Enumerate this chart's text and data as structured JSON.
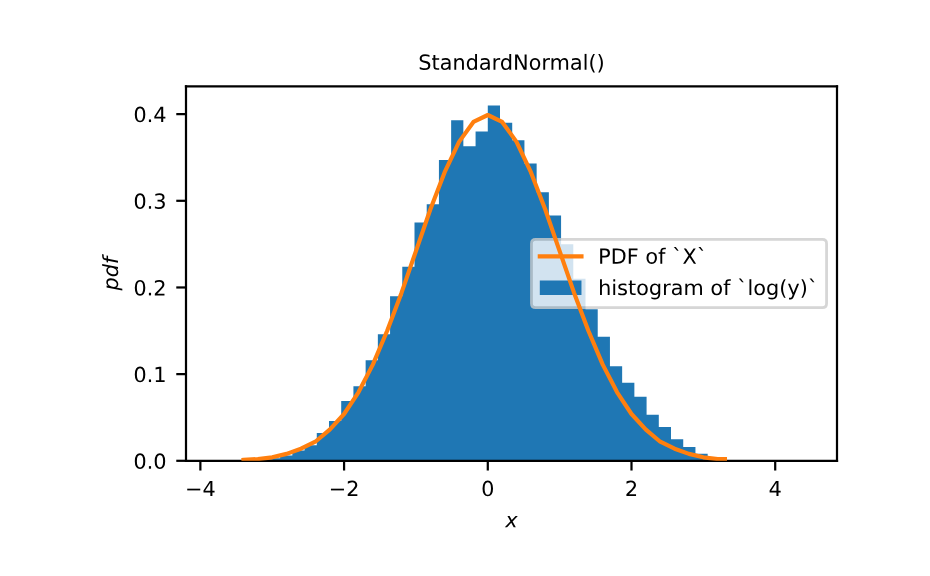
{
  "chart_data": {
    "type": "histogram",
    "title": "StandardNormal()",
    "xlabel": "x",
    "ylabel": "pdf",
    "xlim": [
      -4.2,
      4.86
    ],
    "ylim": [
      0,
      0.432
    ],
    "xticks": [
      {
        "value": -4,
        "label": "−4"
      },
      {
        "value": -2,
        "label": "−2"
      },
      0,
      2,
      4
    ],
    "yticks": [
      {
        "value": 0,
        "label": "0.0"
      },
      0.1,
      0.2,
      0.3,
      0.4
    ],
    "grid": false,
    "legend": "right",
    "series": [
      {
        "type": "line",
        "name": "PDF of `X`",
        "color": "#ff7f0e",
        "x": [
          -3.4,
          -3.2,
          -3.0,
          -2.8,
          -2.6,
          -2.4,
          -2.2,
          -2.0,
          -1.8,
          -1.6,
          -1.4,
          -1.2,
          -1.0,
          -0.8,
          -0.6,
          -0.4,
          -0.2,
          0,
          0.2,
          0.4,
          0.6,
          0.8,
          1.0,
          1.2,
          1.4,
          1.6,
          1.8,
          2.0,
          2.2,
          2.4,
          2.6,
          2.8,
          3.0,
          3.2,
          3.3
        ],
        "values": [
          0.001,
          0.002,
          0.004,
          0.008,
          0.014,
          0.022,
          0.036,
          0.054,
          0.079,
          0.111,
          0.15,
          0.194,
          0.242,
          0.29,
          0.333,
          0.368,
          0.391,
          0.399,
          0.391,
          0.368,
          0.333,
          0.29,
          0.242,
          0.194,
          0.15,
          0.111,
          0.079,
          0.054,
          0.036,
          0.022,
          0.014,
          0.008,
          0.004,
          0.002,
          0.002
        ]
      },
      {
        "name": "histogram of `log(y)`",
        "color": "#1f77b4",
        "bins": [
          -3.06,
          -2.89,
          -2.72,
          -2.55,
          -2.38,
          -2.21,
          -2.04,
          -1.87,
          -1.7,
          -1.53,
          -1.36,
          -1.19,
          -1.02,
          -0.85,
          -0.68,
          -0.51,
          -0.34,
          -0.17,
          0,
          0.17,
          0.34,
          0.51,
          0.68,
          0.85,
          1.02,
          1.19,
          1.36,
          1.53,
          1.7,
          1.87,
          2.04,
          2.21,
          2.38,
          2.55,
          2.72,
          2.89,
          3.06
        ],
        "values": [
          0.003,
          0.006,
          0.012,
          0.018,
          0.032,
          0.046,
          0.069,
          0.086,
          0.116,
          0.146,
          0.19,
          0.224,
          0.275,
          0.296,
          0.347,
          0.393,
          0.363,
          0.38,
          0.41,
          0.39,
          0.37,
          0.343,
          0.31,
          0.283,
          0.25,
          0.21,
          0.175,
          0.143,
          0.109,
          0.09,
          0.074,
          0.053,
          0.039,
          0.025,
          0.016,
          0.008
        ]
      }
    ]
  }
}
